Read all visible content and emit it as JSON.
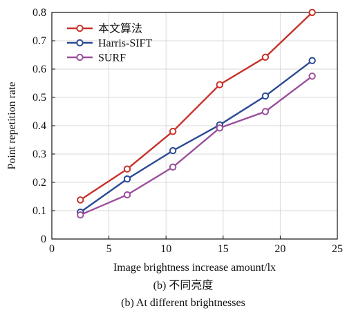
{
  "chart_data": {
    "type": "line",
    "xlabel": "Image brightness increase amount/lx",
    "ylabel": "Point repetition rate",
    "xlim": [
      0,
      25
    ],
    "ylim": [
      0,
      0.8
    ],
    "xticks": [
      0,
      5,
      10,
      15,
      20,
      25
    ],
    "yticks": [
      0,
      0.1,
      0.2,
      0.3,
      0.4,
      0.5,
      0.6,
      0.7,
      0.8
    ],
    "xtick_labels": [
      "0",
      "5",
      "10",
      "15",
      "20",
      "25"
    ],
    "ytick_labels": [
      "0",
      "0.1",
      "0.2",
      "0.3",
      "0.4",
      "0.5",
      "0.6",
      "0.7",
      "0.8"
    ],
    "grid": true,
    "legend_position": "top-left",
    "x": [
      2.5,
      6.6,
      10.6,
      14.7,
      18.7,
      22.8
    ],
    "series": [
      {
        "name": "本文算法",
        "color": "#c8312a",
        "values": [
          0.138,
          0.247,
          0.38,
          0.545,
          0.642,
          0.8
        ]
      },
      {
        "name": "Harris-SIFT",
        "color": "#2b4a94",
        "values": [
          0.095,
          0.212,
          0.312,
          0.403,
          0.505,
          0.63
        ]
      },
      {
        "name": "SURF",
        "color": "#9b4f9c",
        "values": [
          0.085,
          0.156,
          0.254,
          0.392,
          0.45,
          0.575
        ]
      }
    ]
  },
  "captions": {
    "line1": "(b) 不同亮度",
    "line2": "(b) At different brightnesses"
  }
}
